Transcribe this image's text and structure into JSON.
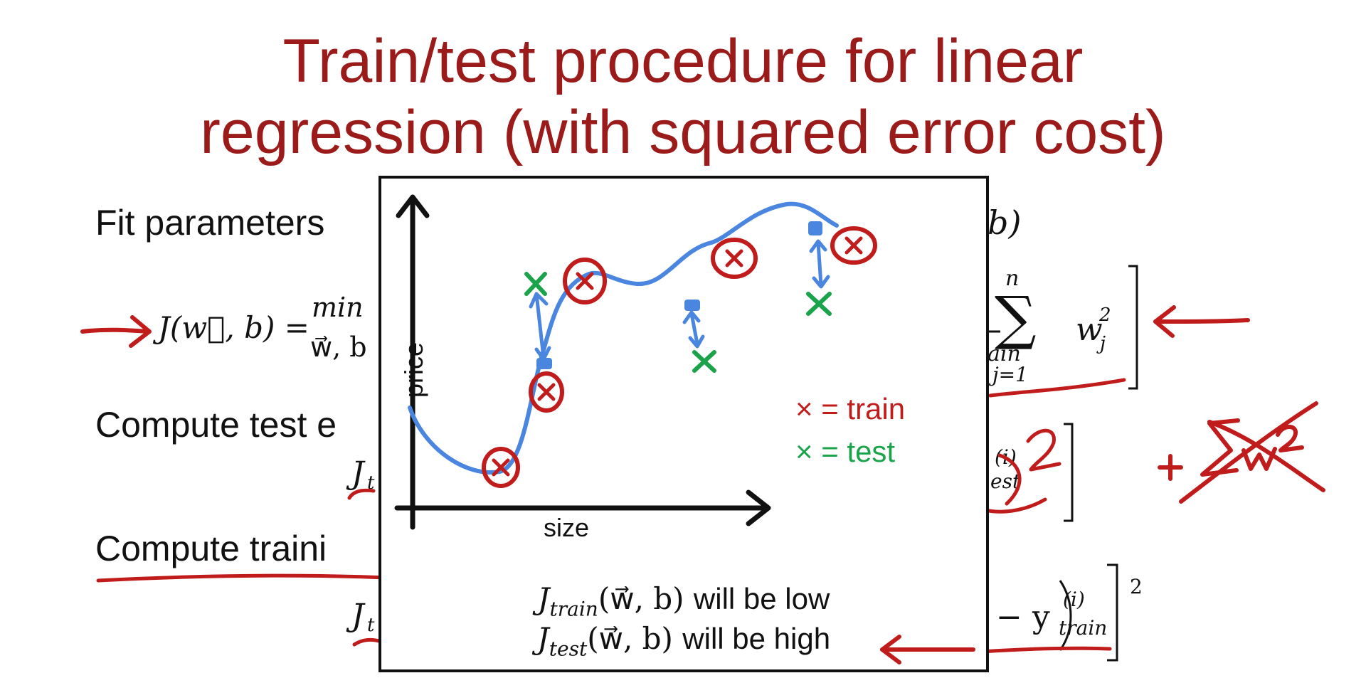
{
  "slide": {
    "title_line1": "Train/test procedure for linear",
    "title_line2": "regression (with squared error cost)",
    "fit_params_text": "Fit parameters",
    "fit_params_tail": "b)",
    "cost_lhs": "J(w⃗, b) =",
    "cost_min": "min",
    "cost_min_sub": "w⃗, b",
    "reg_sum_top": "n",
    "reg_sum_bottom": "j=1",
    "reg_term": "w",
    "reg_sub_j": "j",
    "reg_sup_2": "2",
    "reg_denominator_fragment": "ain",
    "compute_test_text": "Compute test e",
    "j_test_fragment": "J",
    "j_test_sub": "t",
    "test_tail_sup": "(i)",
    "test_tail_sub": "est",
    "compute_train_text": "Compute traini",
    "j_train_fragment": "J",
    "j_train_sub": "t",
    "train_tail": "− y",
    "train_tail_sup": "(i)",
    "train_tail_sub": "train",
    "train_tail_power": "2"
  },
  "inset": {
    "y_axis_label": "price",
    "x_axis_label": "size",
    "legend_train_mark": "×",
    "legend_train_text": "= train",
    "legend_test_mark": "×",
    "legend_test_text": "= test",
    "line1_J": "J",
    "line1_sub": "train",
    "line1_args": "(w⃗, b)",
    "line1_text": "will be low",
    "line2_J": "J",
    "line2_sub": "test",
    "line2_args": "(w⃗, b)",
    "line2_text": "will be high"
  },
  "colors": {
    "title": "#9b1b1b",
    "train": "#c01c1c",
    "test": "#1aa34a",
    "curve": "#4a86e0"
  }
}
